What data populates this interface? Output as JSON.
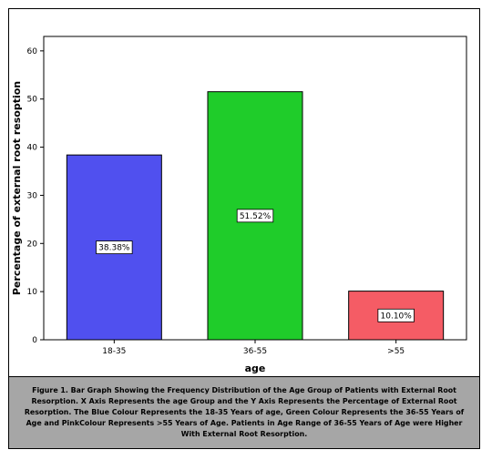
{
  "chart_data": {
    "type": "bar",
    "categories": [
      "18-35",
      "36-55",
      ">55"
    ],
    "values": [
      38.38,
      51.52,
      10.1
    ],
    "data_labels": [
      "38.38%",
      "51.52%",
      "10.10%"
    ],
    "colors": [
      "#5050ef",
      "#1fcc2a",
      "#f55c65"
    ],
    "xlabel": "age",
    "ylabel": "Percentage of external root resoption",
    "ylim": [
      0,
      63
    ],
    "yticks": [
      0,
      10,
      20,
      30,
      40,
      50,
      60
    ],
    "grid": false,
    "legend": "none"
  },
  "caption": "Figure 1. Bar Graph Showing the Frequency Distribution of the Age Group of Patients with External Root Resorption. X Axis Represents the age Group and the Y Axis Represents the Percentage of External Root Resorption. The Blue Colour Represents the 18-35 Years of age, Green Colour Represents the 36-55 Years of Age and PinkColour Represents >55 Years of Age. Patients in Age Range of 36-55 Years of Age were Higher With External Root Resorption."
}
